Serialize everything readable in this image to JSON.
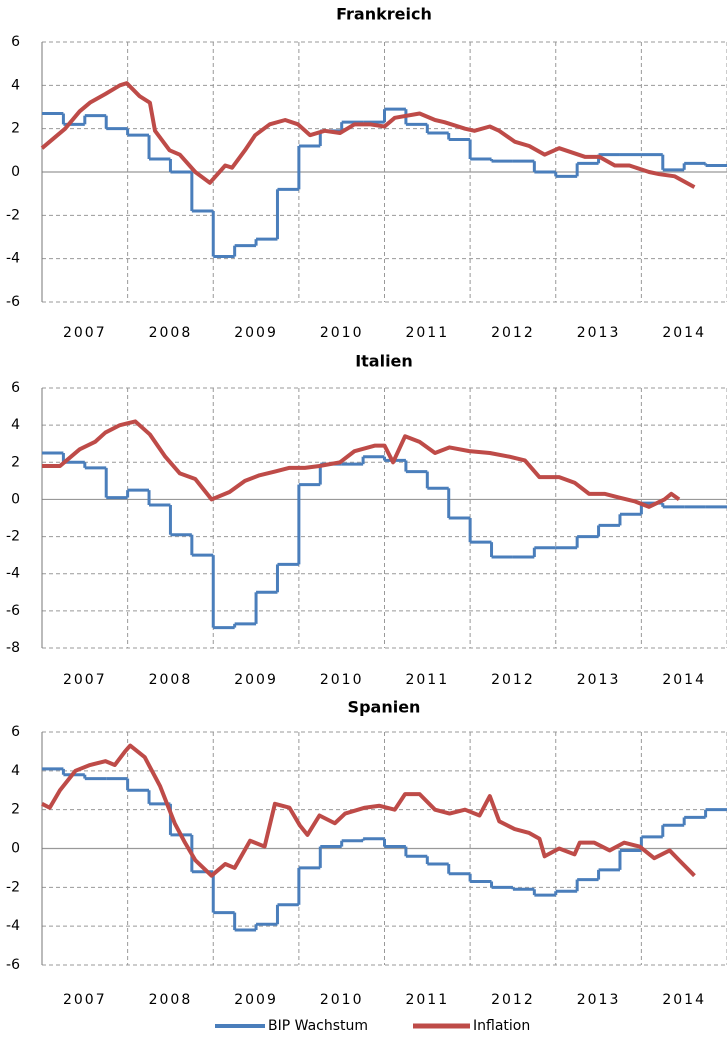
{
  "chart_data": [
    {
      "type": "line",
      "title": "Frankreich",
      "xlim": [
        2007,
        2015
      ],
      "xticks": [
        {
          "value": 2007.5,
          "label": "2007"
        },
        {
          "value": 2008.5,
          "label": "2008"
        },
        {
          "value": 2009.5,
          "label": "2009"
        },
        {
          "value": 2010.5,
          "label": "2010"
        },
        {
          "value": 2011.5,
          "label": "2011"
        },
        {
          "value": 2012.5,
          "label": "2012"
        },
        {
          "value": 2013.5,
          "label": "2013"
        },
        {
          "value": 2014.5,
          "label": "2014"
        }
      ],
      "ylim": [
        -6,
        6
      ],
      "yticks": [
        -6,
        -4,
        -2,
        0,
        2,
        4,
        6
      ],
      "grid": true,
      "series": [
        {
          "name": "BIP Wachstum",
          "color": "#4a7ebb",
          "step": true,
          "x": [
            2007,
            2007.25,
            2007.5,
            2007.75,
            2008,
            2008.25,
            2008.5,
            2008.75,
            2009,
            2009.25,
            2009.5,
            2009.75,
            2010,
            2010.25,
            2010.5,
            2010.75,
            2011,
            2011.25,
            2011.5,
            2011.75,
            2012,
            2012.25,
            2012.5,
            2012.75,
            2013,
            2013.25,
            2013.5,
            2013.75,
            2014,
            2014.25,
            2014.5,
            2014.75
          ],
          "values": [
            2.7,
            2.2,
            2.6,
            2.0,
            1.7,
            0.6,
            0.0,
            -1.8,
            -3.9,
            -3.4,
            -3.1,
            -0.8,
            1.2,
            1.9,
            2.3,
            2.3,
            2.9,
            2.2,
            1.8,
            1.5,
            0.6,
            0.5,
            0.5,
            0.0,
            -0.2,
            0.4,
            0.8,
            0.8,
            0.8,
            0.1,
            0.4,
            0.3
          ]
        },
        {
          "name": "Inflation",
          "color": "#be4b48",
          "x": [
            2007.0,
            2007.27,
            2007.44,
            2007.56,
            2007.74,
            2007.91,
            2007.99,
            2008.14,
            2008.26,
            2008.32,
            2008.49,
            2008.61,
            2008.79,
            2008.96,
            2009.14,
            2009.22,
            2009.37,
            2009.49,
            2009.66,
            2009.84,
            2009.99,
            2010.13,
            2010.3,
            2010.48,
            2010.65,
            2010.83,
            2011.0,
            2011.12,
            2011.41,
            2011.59,
            2011.7,
            2011.94,
            2012.05,
            2012.23,
            2012.34,
            2012.52,
            2012.69,
            2012.87,
            2013.04,
            2013.34,
            2013.51,
            2013.69,
            2013.86,
            2014.09,
            2014.21,
            2014.39,
            2014.62
          ],
          "values": [
            1.1,
            2.0,
            2.8,
            3.2,
            3.6,
            4.0,
            4.1,
            3.5,
            3.2,
            1.9,
            1.0,
            0.8,
            0.0,
            -0.5,
            0.3,
            0.2,
            1.0,
            1.7,
            2.2,
            2.4,
            2.2,
            1.7,
            1.9,
            1.8,
            2.2,
            2.2,
            2.1,
            2.5,
            2.7,
            2.4,
            2.3,
            2.0,
            1.9,
            2.1,
            1.9,
            1.4,
            1.2,
            0.8,
            1.1,
            0.7,
            0.7,
            0.3,
            0.3,
            0.0,
            -0.1,
            -0.2,
            -0.7
          ]
        }
      ]
    },
    {
      "type": "line",
      "title": "Italien",
      "xlim": [
        2007,
        2015
      ],
      "xticks": [
        {
          "value": 2007.5,
          "label": "2007"
        },
        {
          "value": 2008.5,
          "label": "2008"
        },
        {
          "value": 2009.5,
          "label": "2009"
        },
        {
          "value": 2010.5,
          "label": "2010"
        },
        {
          "value": 2011.5,
          "label": "2011"
        },
        {
          "value": 2012.5,
          "label": "2012"
        },
        {
          "value": 2013.5,
          "label": "2013"
        },
        {
          "value": 2014.5,
          "label": "2014"
        }
      ],
      "ylim": [
        -8,
        6
      ],
      "yticks": [
        -8,
        -6,
        -4,
        -2,
        0,
        2,
        4,
        6
      ],
      "grid": true,
      "series": [
        {
          "color": "#4a7ebb",
          "step": true,
          "x": [
            2007,
            2007.25,
            2007.5,
            2007.75,
            2008,
            2008.25,
            2008.5,
            2008.75,
            2009,
            2009.25,
            2009.5,
            2009.75,
            2010,
            2010.25,
            2010.5,
            2010.75,
            2011,
            2011.25,
            2011.5,
            2011.75,
            2012,
            2012.25,
            2012.5,
            2012.75,
            2013,
            2013.25,
            2013.5,
            2013.75,
            2014,
            2014.25,
            2014.5,
            2014.75
          ],
          "values": [
            2.5,
            2.0,
            1.7,
            0.1,
            0.5,
            -0.3,
            -1.9,
            -3.0,
            -6.9,
            -6.7,
            -5.0,
            -3.5,
            0.8,
            1.9,
            1.9,
            2.3,
            2.1,
            1.5,
            0.6,
            -1.0,
            -2.3,
            -3.1,
            -3.1,
            -2.6,
            -2.6,
            -2.0,
            -1.4,
            -0.8,
            -0.2,
            -0.4,
            -0.4,
            -0.4
          ]
        },
        {
          "color": "#be4b48",
          "x": [
            2007.0,
            2007.21,
            2007.44,
            2007.62,
            2007.74,
            2007.91,
            2008.09,
            2008.26,
            2008.44,
            2008.61,
            2008.79,
            2008.98,
            2009.19,
            2009.37,
            2009.54,
            2009.72,
            2009.89,
            2010.07,
            2010.24,
            2010.48,
            2010.65,
            2010.89,
            2011.0,
            2011.1,
            2011.24,
            2011.41,
            2011.59,
            2011.76,
            2011.99,
            2012.23,
            2012.46,
            2012.64,
            2012.81,
            2013.04,
            2013.22,
            2013.39,
            2013.57,
            2013.74,
            2013.92,
            2014.09,
            2014.27,
            2014.35,
            2014.44
          ],
          "values": [
            1.8,
            1.8,
            2.7,
            3.1,
            3.6,
            4.0,
            4.2,
            3.5,
            2.3,
            1.4,
            1.1,
            0.0,
            0.4,
            1.0,
            1.3,
            1.5,
            1.7,
            1.7,
            1.8,
            2.0,
            2.6,
            2.9,
            2.9,
            2.0,
            3.4,
            3.1,
            2.5,
            2.8,
            2.6,
            2.5,
            2.3,
            2.1,
            1.2,
            1.2,
            0.9,
            0.3,
            0.3,
            0.1,
            -0.1,
            -0.4,
            0.0,
            0.3,
            0.0
          ]
        }
      ]
    },
    {
      "type": "line",
      "title": "Spanien",
      "xlim": [
        2007,
        2015
      ],
      "xticks": [
        {
          "value": 2007.5,
          "label": "2007"
        },
        {
          "value": 2008.5,
          "label": "2008"
        },
        {
          "value": 2009.5,
          "label": "2009"
        },
        {
          "value": 2010.5,
          "label": "2010"
        },
        {
          "value": 2011.5,
          "label": "2011"
        },
        {
          "value": 2012.5,
          "label": "2012"
        },
        {
          "value": 2013.5,
          "label": "2013"
        },
        {
          "value": 2014.5,
          "label": "2014"
        }
      ],
      "ylim": [
        -6,
        6
      ],
      "yticks": [
        -6,
        -4,
        -2,
        0,
        2,
        4,
        6
      ],
      "grid": true,
      "series": [
        {
          "color": "#4a7ebb",
          "step": true,
          "x": [
            2007,
            2007.25,
            2007.5,
            2007.75,
            2008,
            2008.25,
            2008.5,
            2008.75,
            2009,
            2009.25,
            2009.5,
            2009.75,
            2010,
            2010.25,
            2010.5,
            2010.75,
            2011,
            2011.25,
            2011.5,
            2011.75,
            2012,
            2012.25,
            2012.5,
            2012.75,
            2013,
            2013.25,
            2013.5,
            2013.75,
            2014,
            2014.25,
            2014.5,
            2014.75
          ],
          "values": [
            4.1,
            3.8,
            3.6,
            3.6,
            3.0,
            2.3,
            0.7,
            -1.2,
            -3.3,
            -4.2,
            -3.9,
            -2.9,
            -1.0,
            0.1,
            0.4,
            0.5,
            0.1,
            -0.4,
            -0.8,
            -1.3,
            -1.7,
            -2.0,
            -2.1,
            -2.4,
            -2.2,
            -1.6,
            -1.1,
            -0.1,
            0.6,
            1.2,
            1.6,
            2.0
          ]
        },
        {
          "color": "#be4b48",
          "x": [
            2007.0,
            2007.09,
            2007.21,
            2007.39,
            2007.56,
            2007.74,
            2007.85,
            2007.97,
            2008.03,
            2008.2,
            2008.38,
            2008.55,
            2008.67,
            2008.79,
            2008.98,
            2009.14,
            2009.25,
            2009.43,
            2009.6,
            2009.72,
            2009.89,
            2010.01,
            2010.1,
            2010.24,
            2010.42,
            2010.54,
            2010.77,
            2010.94,
            2011.12,
            2011.24,
            2011.41,
            2011.59,
            2011.76,
            2011.94,
            2012.11,
            2012.23,
            2012.34,
            2012.52,
            2012.69,
            2012.81,
            2012.87,
            2013.04,
            2013.22,
            2013.28,
            2013.45,
            2013.63,
            2013.8,
            2013.98,
            2014.15,
            2014.33,
            2014.44,
            2014.62
          ],
          "values": [
            2.3,
            2.1,
            3.0,
            4.0,
            4.3,
            4.5,
            4.3,
            5.0,
            5.3,
            4.7,
            3.2,
            1.3,
            0.3,
            -0.6,
            -1.4,
            -0.8,
            -1.0,
            0.4,
            0.1,
            2.3,
            2.1,
            1.2,
            0.7,
            1.7,
            1.3,
            1.8,
            2.1,
            2.2,
            2.0,
            2.8,
            2.8,
            2.0,
            1.8,
            2.0,
            1.7,
            2.7,
            1.4,
            1.0,
            0.8,
            0.5,
            -0.4,
            0.0,
            -0.3,
            0.3,
            0.3,
            -0.1,
            0.3,
            0.1,
            -0.5,
            -0.1,
            -0.6,
            -1.4
          ]
        }
      ]
    }
  ]
}
